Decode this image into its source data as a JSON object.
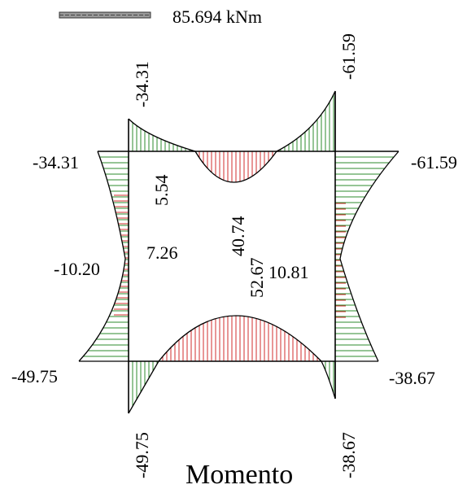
{
  "scale": {
    "value_label": "85.694 kNm"
  },
  "title": "Momento",
  "colors": {
    "hogging": "#2e8b2e",
    "sagging": "#d22e2e",
    "frame": "#000000"
  },
  "moments": {
    "left_column_top": "-34.31",
    "left_column_top_rotated": "-34.31",
    "right_column_top": "-61.59",
    "right_column_top_rotated": "-61.59",
    "left_column_bottom": "-49.75",
    "left_column_bottom_rotated": "-49.75",
    "right_column_bottom": "-38.67",
    "right_column_bottom_rotated": "-38.67",
    "left_column_mid": "-10.20",
    "right_column_mid": "10.81",
    "left_column_mid_inner": "7.26",
    "top_beam_left_zero_region": "5.54",
    "top_beam_mid": "40.74",
    "bottom_beam_mid": "52.67"
  }
}
